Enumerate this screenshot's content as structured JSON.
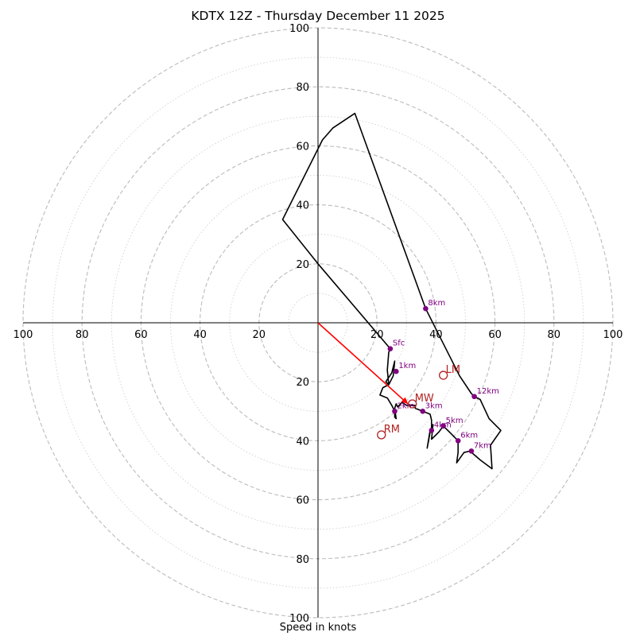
{
  "chart_data": {
    "type": "hodograph",
    "title": "KDTX 12Z - Thursday December 11 2025",
    "xlabel": "Speed in knots",
    "radius_max": 100,
    "ring_major_step": 20,
    "ring_minor_step": 10,
    "grid": true,
    "axis_tick_labels": {
      "left": [
        "100",
        "80",
        "60",
        "40",
        "20"
      ],
      "right": [
        "20",
        "40",
        "60",
        "80",
        "100"
      ],
      "top": [
        "100",
        "80",
        "60",
        "40",
        "20"
      ],
      "bottom": [
        "20",
        "40",
        "60",
        "80",
        "100"
      ]
    },
    "colors": {
      "hodograph": "#000000",
      "height_marker": "#800080",
      "motion_vector": "#ff0000",
      "motion_marker": "#b22222",
      "grid": "#bbbbbb"
    },
    "hodograph_trace": [
      [
        24.5,
        -8.8
      ],
      [
        24,
        -10
      ],
      [
        23.5,
        -16
      ],
      [
        24,
        -21
      ],
      [
        23,
        -20
      ],
      [
        25,
        -17
      ],
      [
        26,
        -13
      ],
      [
        25.5,
        -18
      ],
      [
        24,
        -21
      ],
      [
        22,
        -22
      ],
      [
        21,
        -24.5
      ],
      [
        23.5,
        -25.5
      ],
      [
        25,
        -28
      ],
      [
        26,
        -30
      ],
      [
        26,
        -32
      ],
      [
        26.5,
        -32.5
      ],
      [
        26,
        -29
      ],
      [
        26.5,
        -27.5
      ],
      [
        27,
        -28.5
      ],
      [
        28.5,
        -27
      ],
      [
        30,
        -28
      ],
      [
        33,
        -28
      ],
      [
        33,
        -29
      ],
      [
        35.5,
        -30
      ],
      [
        38,
        -31
      ],
      [
        38.5,
        -33
      ],
      [
        38.5,
        -36.5
      ],
      [
        38,
        -37
      ],
      [
        37.5,
        -40
      ],
      [
        37,
        -42.5
      ],
      [
        38,
        -36.5
      ],
      [
        39,
        -34.5
      ],
      [
        38.5,
        -39.5
      ],
      [
        41,
        -37
      ],
      [
        42.5,
        -35
      ],
      [
        45,
        -37.5
      ],
      [
        47.5,
        -40
      ],
      [
        47.5,
        -44
      ],
      [
        47,
        -47.5
      ],
      [
        49.5,
        -44
      ],
      [
        51.5,
        -43.5
      ],
      [
        55,
        -46.5
      ],
      [
        59,
        -49.5
      ],
      [
        58.5,
        -41.5
      ],
      [
        62,
        -36.5
      ],
      [
        58,
        -32.5
      ],
      [
        55,
        -26
      ],
      [
        53,
        -25
      ],
      [
        52,
        -24
      ],
      [
        48,
        -18
      ],
      [
        36.5,
        4.8
      ],
      [
        12.5,
        71
      ],
      [
        5,
        66
      ],
      [
        1.5,
        62
      ],
      [
        -12,
        35
      ],
      [
        0,
        20
      ],
      [
        24.5,
        -8.8
      ]
    ],
    "height_markers": [
      {
        "label": "Sfc",
        "u": 24.5,
        "v": -8.8
      },
      {
        "label": "1km",
        "u": 26.5,
        "v": -16.5
      },
      {
        "label": "2km",
        "u": 26,
        "v": -30
      },
      {
        "label": "3km",
        "u": 35.5,
        "v": -30
      },
      {
        "label": "4km",
        "u": 38.5,
        "v": -36.5
      },
      {
        "label": "5km",
        "u": 42.5,
        "v": -35
      },
      {
        "label": "6km",
        "u": 47.5,
        "v": -40
      },
      {
        "label": "7km",
        "u": 52,
        "v": -43.5
      },
      {
        "label": "8km",
        "u": 36.5,
        "v": 4.8
      },
      {
        "label": "12km",
        "u": 53,
        "v": -25
      }
    ],
    "motion_markers": [
      {
        "label": "LM",
        "u": 42.5,
        "v": -17.8
      },
      {
        "label": "MW",
        "u": 32,
        "v": -27.5
      },
      {
        "label": "RM",
        "u": 21.5,
        "v": -38
      }
    ],
    "mean_wind_vector": {
      "from": [
        0,
        0
      ],
      "to": [
        30.5,
        -27.5
      ]
    }
  }
}
